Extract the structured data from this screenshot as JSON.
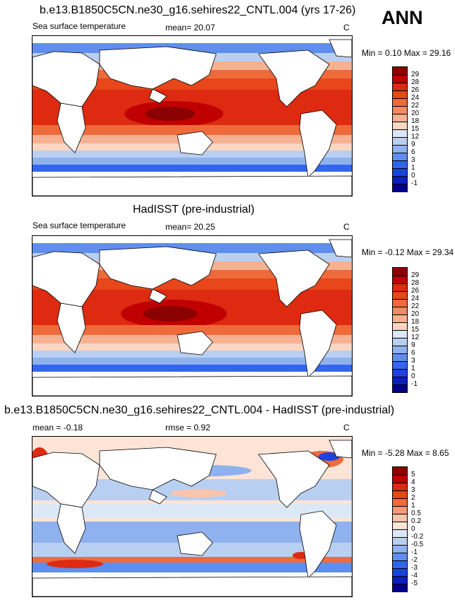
{
  "panels": [
    {
      "id": "model",
      "title": "b.e13.B1850C5CN.ne30_g16.sehires22_CNTL.004 (yrs 17-26)",
      "left_label": "Sea surface temperature",
      "mid_label": "mean=  20.07",
      "unit": "C",
      "minmax": "Min =   0.10 Max =  29.16",
      "levels": [
        "29",
        "28",
        "26",
        "24",
        "22",
        "20",
        "18",
        "15",
        "12",
        "9",
        "6",
        "3",
        "1",
        "0",
        "-1"
      ],
      "colors": [
        "#8b0000",
        "#c00000",
        "#dd2a10",
        "#e8461b",
        "#ef6a3a",
        "#f28b62",
        "#f6b193",
        "#fbd6c3",
        "#dbe6f6",
        "#b9cff2",
        "#8fb2ee",
        "#5f8eec",
        "#3366ee",
        "#1a44dd",
        "#0b1fbf",
        "#00008b"
      ]
    },
    {
      "id": "obs",
      "title": "HadISST (pre-industrial)",
      "left_label": "Sea surface temperature",
      "mid_label": "mean=  20.25",
      "unit": "C",
      "minmax": "Min =  -0.12 Max =  29.34",
      "levels": [
        "29",
        "28",
        "26",
        "24",
        "22",
        "20",
        "18",
        "15",
        "12",
        "9",
        "6",
        "3",
        "1",
        "0",
        "-1"
      ],
      "colors": [
        "#8b0000",
        "#c00000",
        "#dd2a10",
        "#e8461b",
        "#ef6a3a",
        "#f28b62",
        "#f6b193",
        "#fbd6c3",
        "#dbe6f6",
        "#b9cff2",
        "#8fb2ee",
        "#5f8eec",
        "#3366ee",
        "#1a44dd",
        "#0b1fbf",
        "#00008b"
      ]
    },
    {
      "id": "diff",
      "title": "b.e13.B1850C5CN.ne30_g16.sehires22_CNTL.004 - HadISST (pre-industrial)",
      "left_label": "mean =  -0.18",
      "mid_label": "rmse =   0.92",
      "unit": "C",
      "minmax": "Min =  -5.28 Max =   8.65",
      "levels": [
        "5",
        "4",
        "3",
        "2",
        "1",
        "0.5",
        "0.2",
        "0",
        "-0.2",
        "-0.5",
        "-1",
        "-2",
        "-3",
        "-4",
        "-5"
      ],
      "colors": [
        "#8b0000",
        "#c00000",
        "#dd2a10",
        "#e8461b",
        "#f06a3a",
        "#f39a77",
        "#f8c4ac",
        "#fde4d6",
        "#dde8f7",
        "#b9cff2",
        "#8fb2ee",
        "#5f8eec",
        "#3366ee",
        "#1a44dd",
        "#0b1fbf",
        "#00008b"
      ]
    }
  ],
  "season": "ANN"
}
